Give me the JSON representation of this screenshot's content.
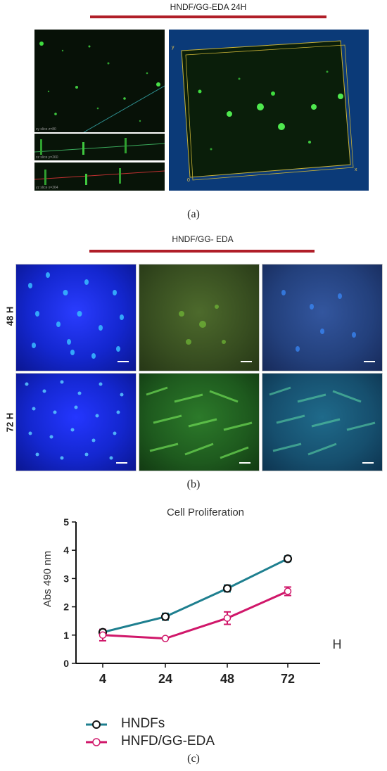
{
  "panel_a": {
    "title": "HNDF/GG-EDA 24H",
    "caption": "(a)",
    "slice_labels": [
      "xy slice z=80",
      "xz slice y=260",
      "yz slice x=264"
    ],
    "axis_y": "y",
    "axis_x": "x",
    "axis_origin": "0"
  },
  "panel_b": {
    "title": "HNDF/GG- EDA",
    "caption": "(b)",
    "rows": [
      {
        "label": "48 H"
      },
      {
        "label": "72 H"
      }
    ]
  },
  "panel_c": {
    "caption": "(c)"
  },
  "colors": {
    "hndfs": "#1e7f8f",
    "hnfd_gg_eda": "#d0176a",
    "red_bar": "#b01e28",
    "dapi_blue": "#1530d8",
    "fitc_green": "#3faa3a"
  },
  "chart_data": {
    "type": "line",
    "title": "Cell Proliferation",
    "xlabel": "H",
    "ylabel": "Abs 490 nm",
    "categories": [
      "4",
      "24",
      "48",
      "72"
    ],
    "ylim": [
      0,
      5
    ],
    "yticks": [
      "0",
      "1",
      "2",
      "3",
      "4",
      "5"
    ],
    "series": [
      {
        "name": "HNDFs",
        "values": [
          1.1,
          1.65,
          2.65,
          3.7
        ],
        "errors": [
          0.1,
          0.12,
          0.12,
          0.1
        ]
      },
      {
        "name": "HNFD/GG-EDA",
        "values": [
          1.0,
          0.88,
          1.6,
          2.55
        ],
        "errors": [
          0.2,
          0.02,
          0.22,
          0.15
        ]
      }
    ],
    "legend_position": "bottom"
  }
}
